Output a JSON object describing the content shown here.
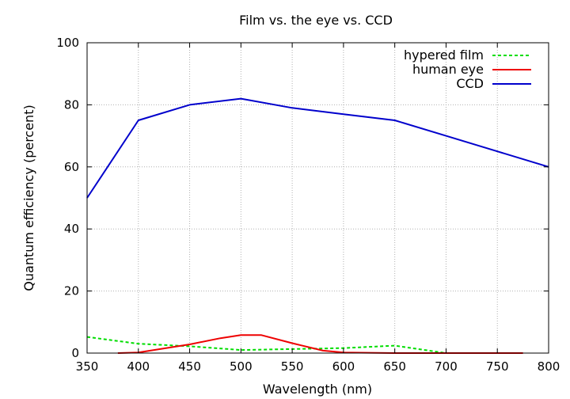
{
  "chart_data": {
    "type": "line",
    "title": "Film vs. the eye vs. CCD",
    "xlabel": "Wavelength (nm)",
    "ylabel": "Quantum efficiency (percent)",
    "xlim": [
      350,
      800
    ],
    "ylim": [
      0,
      100
    ],
    "x_ticks": [
      350,
      400,
      450,
      500,
      550,
      600,
      650,
      700,
      750,
      800
    ],
    "y_ticks": [
      0,
      20,
      40,
      60,
      80,
      100
    ],
    "grid": true,
    "legend_position": "top-right",
    "series": [
      {
        "name": "hypered film",
        "color": "#00dd00",
        "dash": "dashed",
        "x": [
          350,
          400,
          450,
          500,
          550,
          600,
          650,
          700
        ],
        "y": [
          5.2,
          3.0,
          2.2,
          1.0,
          1.3,
          1.6,
          2.4,
          0.0
        ]
      },
      {
        "name": "human eye",
        "color": "#ee0000",
        "dash": "solid",
        "x": [
          380,
          400,
          450,
          480,
          500,
          520,
          550,
          580,
          600,
          650,
          700,
          775
        ],
        "y": [
          0.0,
          0.2,
          2.8,
          4.8,
          5.8,
          5.8,
          3.2,
          0.8,
          0.2,
          0.0,
          0.0,
          0.0
        ]
      },
      {
        "name": "CCD",
        "color": "#0000cc",
        "dash": "solid",
        "x": [
          350,
          400,
          450,
          500,
          550,
          600,
          650,
          700,
          750,
          800
        ],
        "y": [
          50,
          75,
          80,
          82,
          79,
          77,
          75,
          70,
          65,
          60
        ]
      }
    ]
  }
}
